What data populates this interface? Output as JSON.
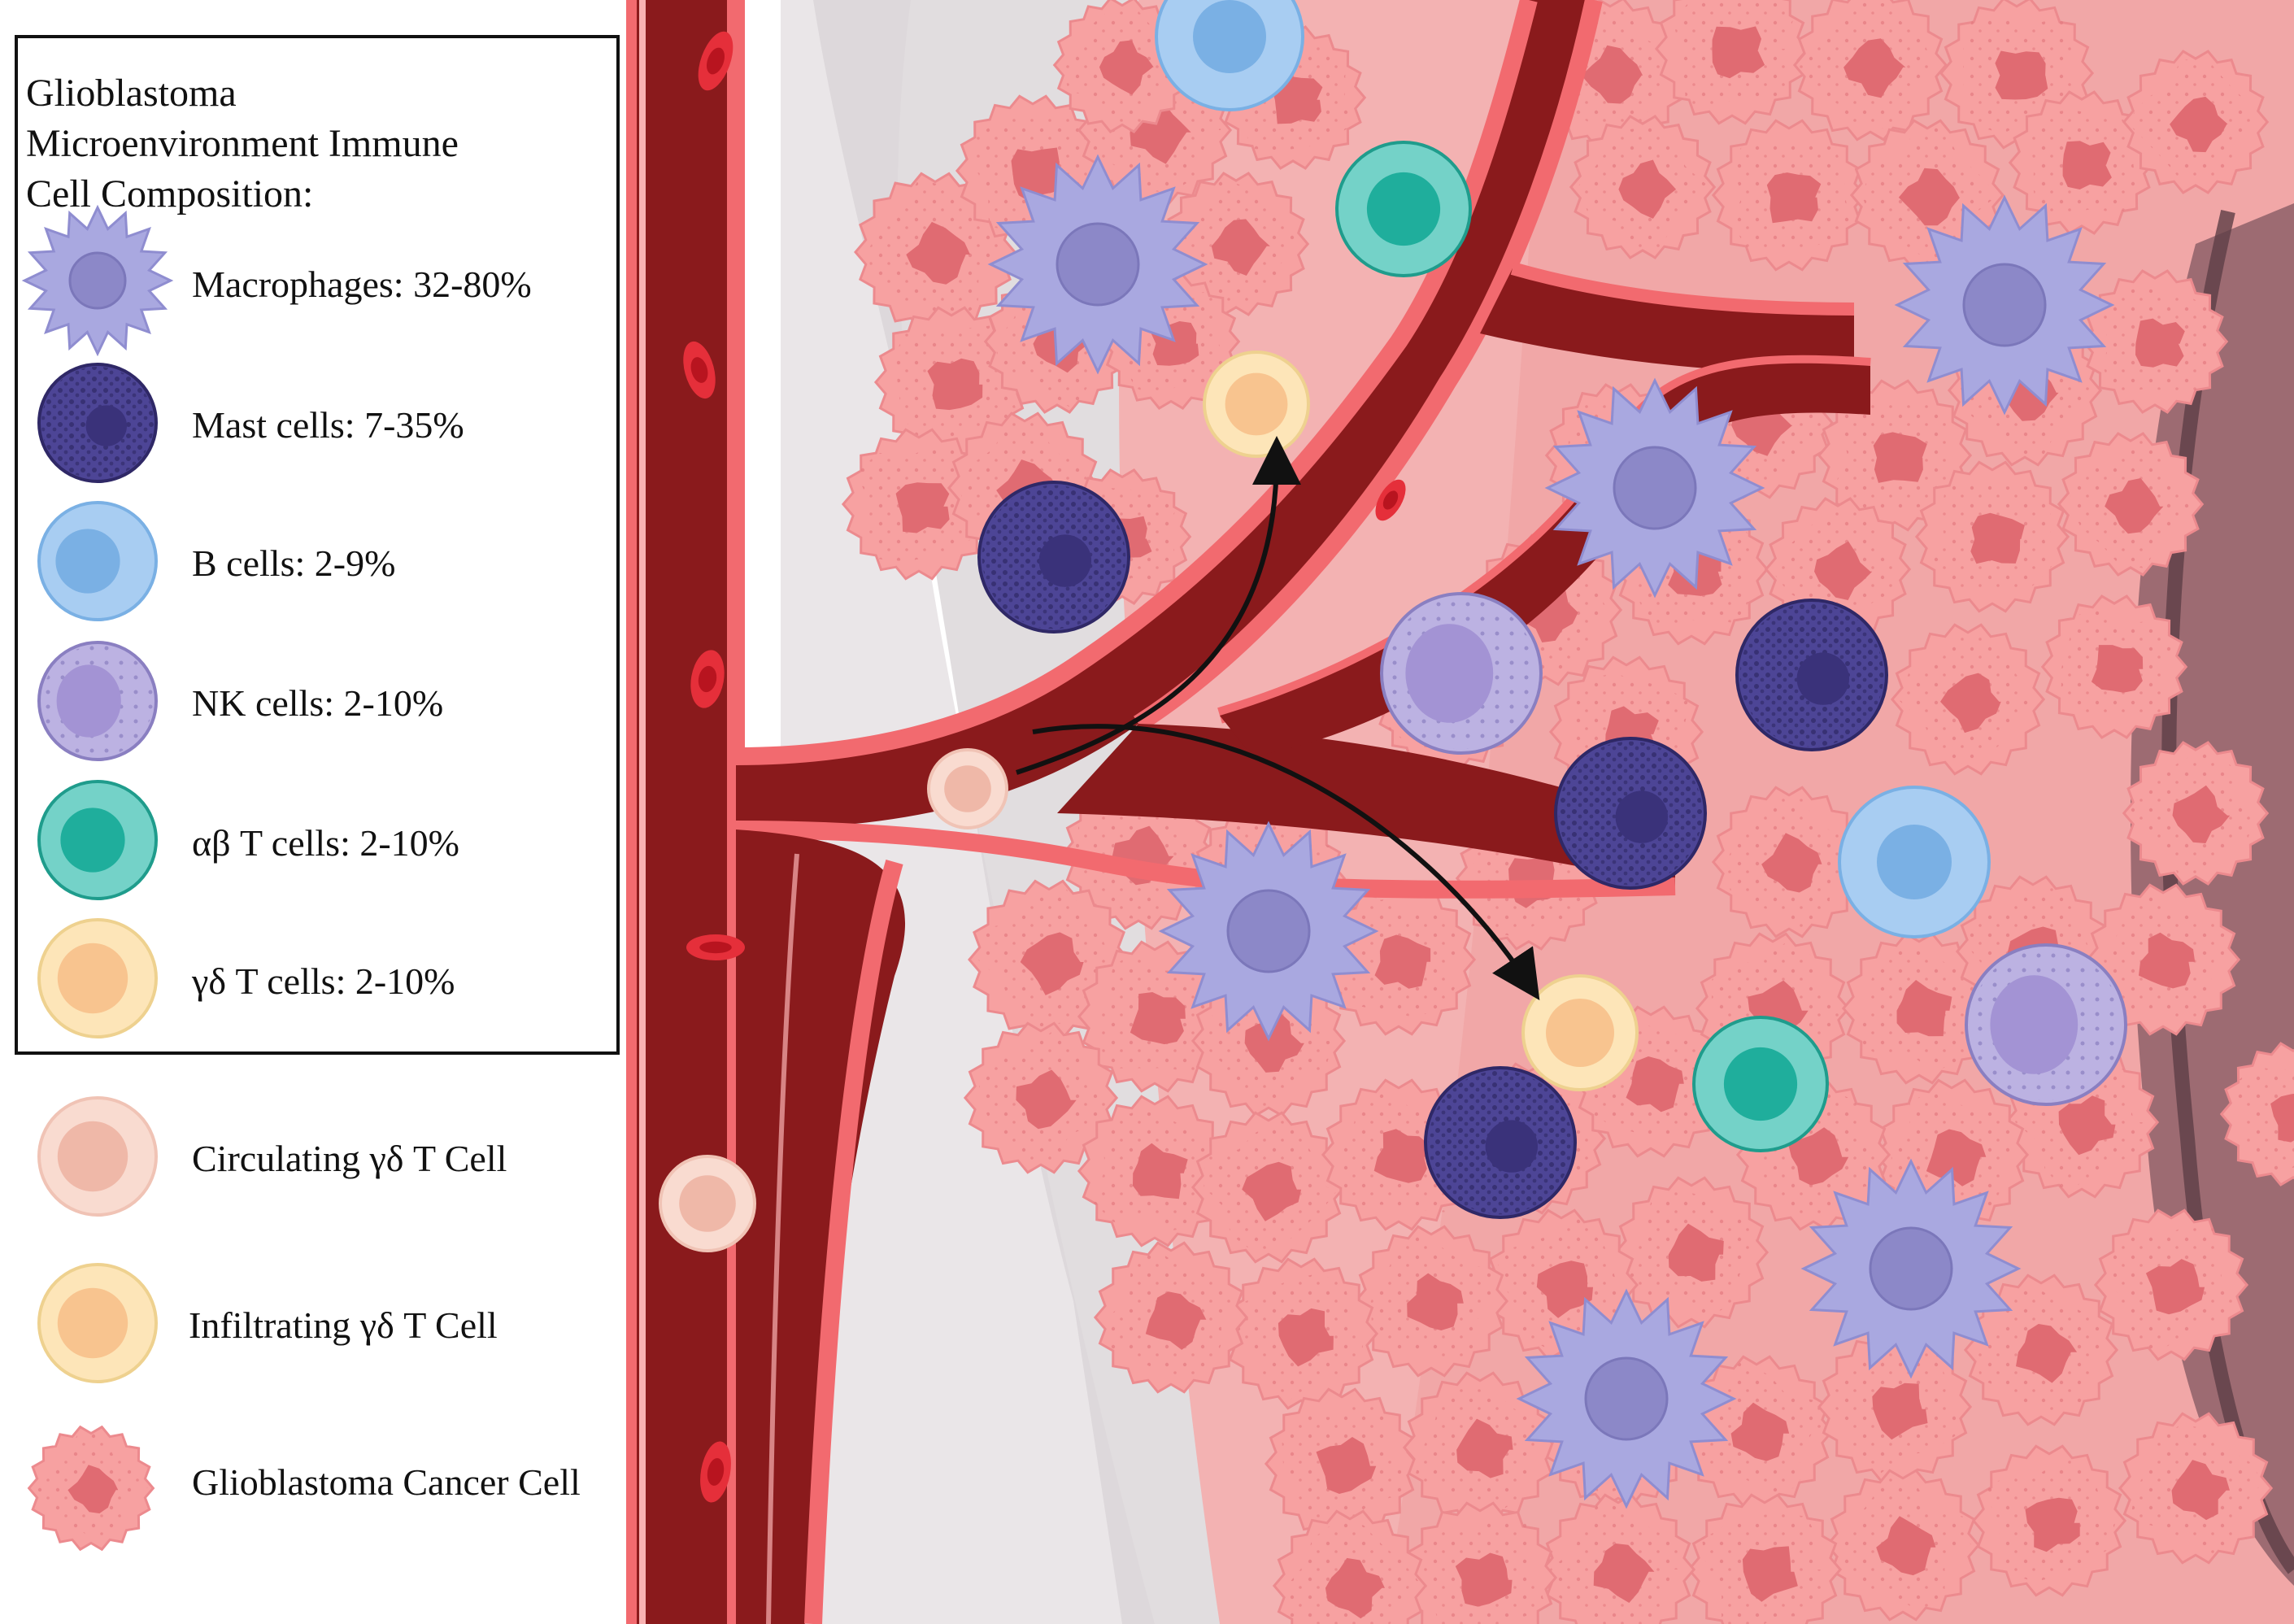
{
  "legend": {
    "title_lines": [
      "Glioblastoma",
      "Microenvironment Immune",
      "Cell Composition:"
    ],
    "composition": [
      {
        "label": "Macrophages: 32-80%",
        "icon": "macrophage-icon"
      },
      {
        "label": "Mast cells: 7-35%",
        "icon": "mast-cell-icon"
      },
      {
        "label": "B cells: 2-9%",
        "icon": "b-cell-icon"
      },
      {
        "label": "NK cells: 2-10%",
        "icon": "nk-cell-icon"
      },
      {
        "label": "αβ T cells: 2-10%",
        "icon": "ab-t-cell-icon"
      },
      {
        "label": "γδ T cells: 2-10%",
        "icon": "gd-t-cell-icon"
      }
    ],
    "extra": [
      {
        "label": "Circulating γδ T Cell",
        "icon": "circulating-gd-t-cell-icon"
      },
      {
        "label": "Infiltrating γδ T Cell",
        "icon": "infiltrating-gd-t-cell-icon"
      },
      {
        "label": "Glioblastoma Cancer Cell",
        "icon": "glioblastoma-cancer-cell-icon"
      }
    ]
  },
  "colors": {
    "macrophage": "#a9a8e0",
    "macrophage_nucleus": "#8c88c8",
    "mast_cell": "#4d4596",
    "mast_nucleus": "#3a327a",
    "b_cell": "#a8cdf2",
    "b_nucleus": "#7ab0e4",
    "nk_cell": "#bcb2e2",
    "nk_nucleus": "#a393d4",
    "ab_t_cell": "#74d2c8",
    "ab_nucleus": "#1fae9c",
    "gd_t_cell": "#fde5b8",
    "gd_nucleus": "#f8c48f",
    "circulating": "#f9dbd0",
    "circulating_nucleus": "#efb8a8",
    "cancer_cell": "#f7a1a1",
    "cancer_nucleus": "#e06b72",
    "vessel": "#8a1a1c",
    "vessel_wall": "#f26a6f",
    "rbc": "#e52f3a",
    "tissue_bg": "#e8e4e6"
  }
}
